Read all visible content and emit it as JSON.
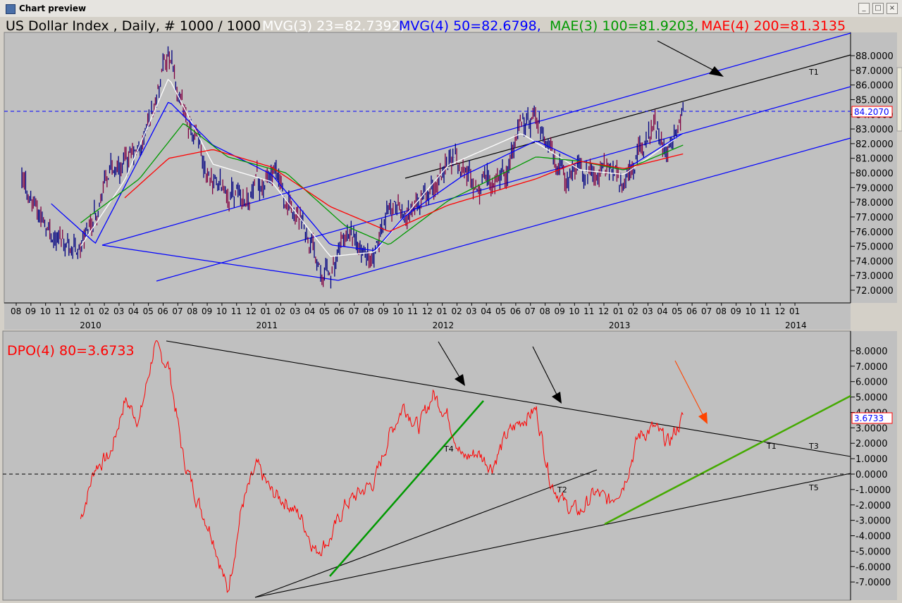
{
  "window": {
    "title": "Chart preview",
    "buttons": {
      "minimize": "_",
      "maximize": "□",
      "close": "×"
    }
  },
  "top_panel": {
    "title": "US Dollar Index , Daily, # 1000 / 1000",
    "indicators": [
      {
        "label": "MVG(3) 23=82.7392,",
        "color": "#ffffff"
      },
      {
        "label": "MVG(4) 50=82.6798,",
        "color": "#0000ff"
      },
      {
        "label": "MAE(3) 100=81.9203,",
        "color": "#009900"
      },
      {
        "label": "MAE(4) 200=81.3135",
        "color": "#ff0000"
      }
    ],
    "last_value": "84.2070",
    "trend_labels": [
      "T1"
    ]
  },
  "bottom_panel": {
    "title": "DPO(4) 80=3.6733",
    "last_value": "3.6733",
    "trend_labels": [
      "T1",
      "T2",
      "T3",
      "T4",
      "T5"
    ]
  },
  "chart_data": [
    {
      "type": "line",
      "title": "US Dollar Index , Daily, # 1000 / 1000",
      "ylim": [
        71.3,
        89.8
      ],
      "y_ticks": [
        "72.0000",
        "73.0000",
        "74.0000",
        "75.0000",
        "76.0000",
        "77.0000",
        "78.0000",
        "79.0000",
        "80.0000",
        "81.0000",
        "82.0000",
        "83.0000",
        "84.0000",
        "85.0000",
        "86.0000",
        "87.0000",
        "88.0000"
      ],
      "x_month_ticks": [
        "08",
        "09",
        "10",
        "11",
        "12",
        "01",
        "02",
        "03",
        "04",
        "05",
        "06",
        "07",
        "08",
        "09",
        "10",
        "11",
        "12",
        "01",
        "02",
        "03",
        "04",
        "05",
        "06",
        "07",
        "08",
        "09",
        "10",
        "11",
        "12",
        "01",
        "02",
        "03",
        "04",
        "05",
        "06",
        "07",
        "08",
        "09",
        "10",
        "11",
        "12",
        "01",
        "02",
        "03",
        "04",
        "05",
        "06",
        "07",
        "08",
        "09",
        "10",
        "11",
        "12",
        "01"
      ],
      "x_year_ticks": [
        "2010",
        "2011",
        "2012",
        "2013",
        "2014"
      ],
      "x_range": [
        "2009-08",
        "2014-01"
      ],
      "series": [
        {
          "name": "US Dollar Index",
          "color": "#000080",
          "x": [
            "2009-08",
            "2009-10",
            "2009-12",
            "2010-02",
            "2010-04",
            "2010-06",
            "2010-07",
            "2010-09",
            "2010-11",
            "2011-01",
            "2011-03",
            "2011-05",
            "2011-06",
            "2011-08",
            "2011-09",
            "2011-10",
            "2011-12",
            "2012-01",
            "2012-03",
            "2012-05",
            "2012-06",
            "2012-07",
            "2012-09",
            "2012-10",
            "2012-12",
            "2013-01",
            "2013-02",
            "2013-03",
            "2013-04",
            "2013-05"
          ],
          "values": [
            79.3,
            76.0,
            74.8,
            80.2,
            81.3,
            88.0,
            84.0,
            79.5,
            78.3,
            79.8,
            76.4,
            72.9,
            75.6,
            73.9,
            77.9,
            77.1,
            78.9,
            81.2,
            79.3,
            80.5,
            83.2,
            83.5,
            79.6,
            80.0,
            80.4,
            79.3,
            81.5,
            82.9,
            81.9,
            84.2
          ]
        },
        {
          "name": "MVG(3) 23",
          "color": "#ffffff",
          "x": [
            "2009-12",
            "2010-03",
            "2010-06",
            "2010-09",
            "2011-01",
            "2011-05",
            "2011-08",
            "2012-01",
            "2012-06",
            "2012-10",
            "2013-01",
            "2013-05"
          ],
          "values": [
            75.0,
            79.5,
            86.5,
            80.6,
            79.4,
            74.3,
            74.6,
            80.5,
            82.7,
            80.2,
            79.9,
            82.7
          ]
        },
        {
          "name": "MVG(4) 50",
          "color": "#0000ff",
          "x": [
            "2009-10",
            "2010-01",
            "2010-06",
            "2010-09",
            "2011-01",
            "2011-05",
            "2011-08",
            "2011-10",
            "2012-02",
            "2012-07",
            "2012-10",
            "2013-01",
            "2013-05"
          ],
          "values": [
            77.9,
            75.2,
            84.9,
            81.9,
            79.9,
            75.1,
            74.7,
            77.0,
            79.8,
            82.2,
            80.8,
            80.2,
            82.7
          ]
        },
        {
          "name": "MAE(3) 100",
          "color": "#009900",
          "x": [
            "2009-12",
            "2010-04",
            "2010-07",
            "2010-10",
            "2011-02",
            "2011-06",
            "2011-09",
            "2012-01",
            "2012-07",
            "2012-10",
            "2013-01",
            "2013-05"
          ],
          "values": [
            76.6,
            79.6,
            83.4,
            81.1,
            80.0,
            76.4,
            75.1,
            78.1,
            81.1,
            80.8,
            80.2,
            81.9
          ]
        },
        {
          "name": "MAE(4) 200",
          "color": "#ff0000",
          "x": [
            "2010-03",
            "2010-06",
            "2010-09",
            "2011-01",
            "2011-05",
            "2011-09",
            "2012-01",
            "2012-07",
            "2012-10",
            "2013-01",
            "2013-05"
          ],
          "values": [
            78.3,
            81.0,
            81.6,
            80.4,
            77.7,
            76.0,
            77.8,
            79.6,
            80.8,
            80.3,
            81.3
          ]
        }
      ]
    },
    {
      "type": "line",
      "title": "DPO(4) 80=3.6733",
      "ylim": [
        -8.0,
        8.8
      ],
      "y_ticks": [
        "8.0000",
        "7.0000",
        "6.0000",
        "5.0000",
        "4.0000",
        "3.0000",
        "2.0000",
        "1.0000",
        "0.0000",
        "-1.0000",
        "-2.0000",
        "-3.0000",
        "-4.0000",
        "-5.0000",
        "-6.0000",
        "-7.0000"
      ],
      "series": [
        {
          "name": "DPO(4) 80",
          "color": "#ff0000",
          "x": [
            "2009-12",
            "2010-01",
            "2010-02",
            "2010-03",
            "2010-04",
            "2010-05",
            "2010-06",
            "2010-07",
            "2010-08",
            "2010-09",
            "2010-10",
            "2010-11",
            "2010-12",
            "2011-01",
            "2011-02",
            "2011-03",
            "2011-04",
            "2011-05",
            "2011-06",
            "2011-07",
            "2011-08",
            "2011-09",
            "2011-10",
            "2011-11",
            "2011-12",
            "2012-01",
            "2012-02",
            "2012-03",
            "2012-04",
            "2012-05",
            "2012-06",
            "2012-07",
            "2012-08",
            "2012-09",
            "2012-10",
            "2012-11",
            "2012-12",
            "2013-01",
            "2013-02",
            "2013-03",
            "2013-04",
            "2013-05"
          ],
          "values": [
            -2.9,
            0.5,
            1.2,
            4.8,
            3.5,
            8.2,
            7.0,
            1.0,
            -1.8,
            -4.0,
            -7.7,
            -2.0,
            0.5,
            -1.2,
            -1.8,
            -2.8,
            -5.0,
            -4.2,
            -2.0,
            -1.2,
            -0.5,
            2.5,
            4.5,
            3.0,
            5.2,
            3.8,
            1.0,
            1.4,
            0.5,
            2.5,
            3.5,
            4.2,
            -0.5,
            -2.0,
            -2.5,
            -1.2,
            -1.8,
            -0.5,
            2.5,
            3.0,
            2.0,
            3.67
          ]
        }
      ]
    }
  ]
}
